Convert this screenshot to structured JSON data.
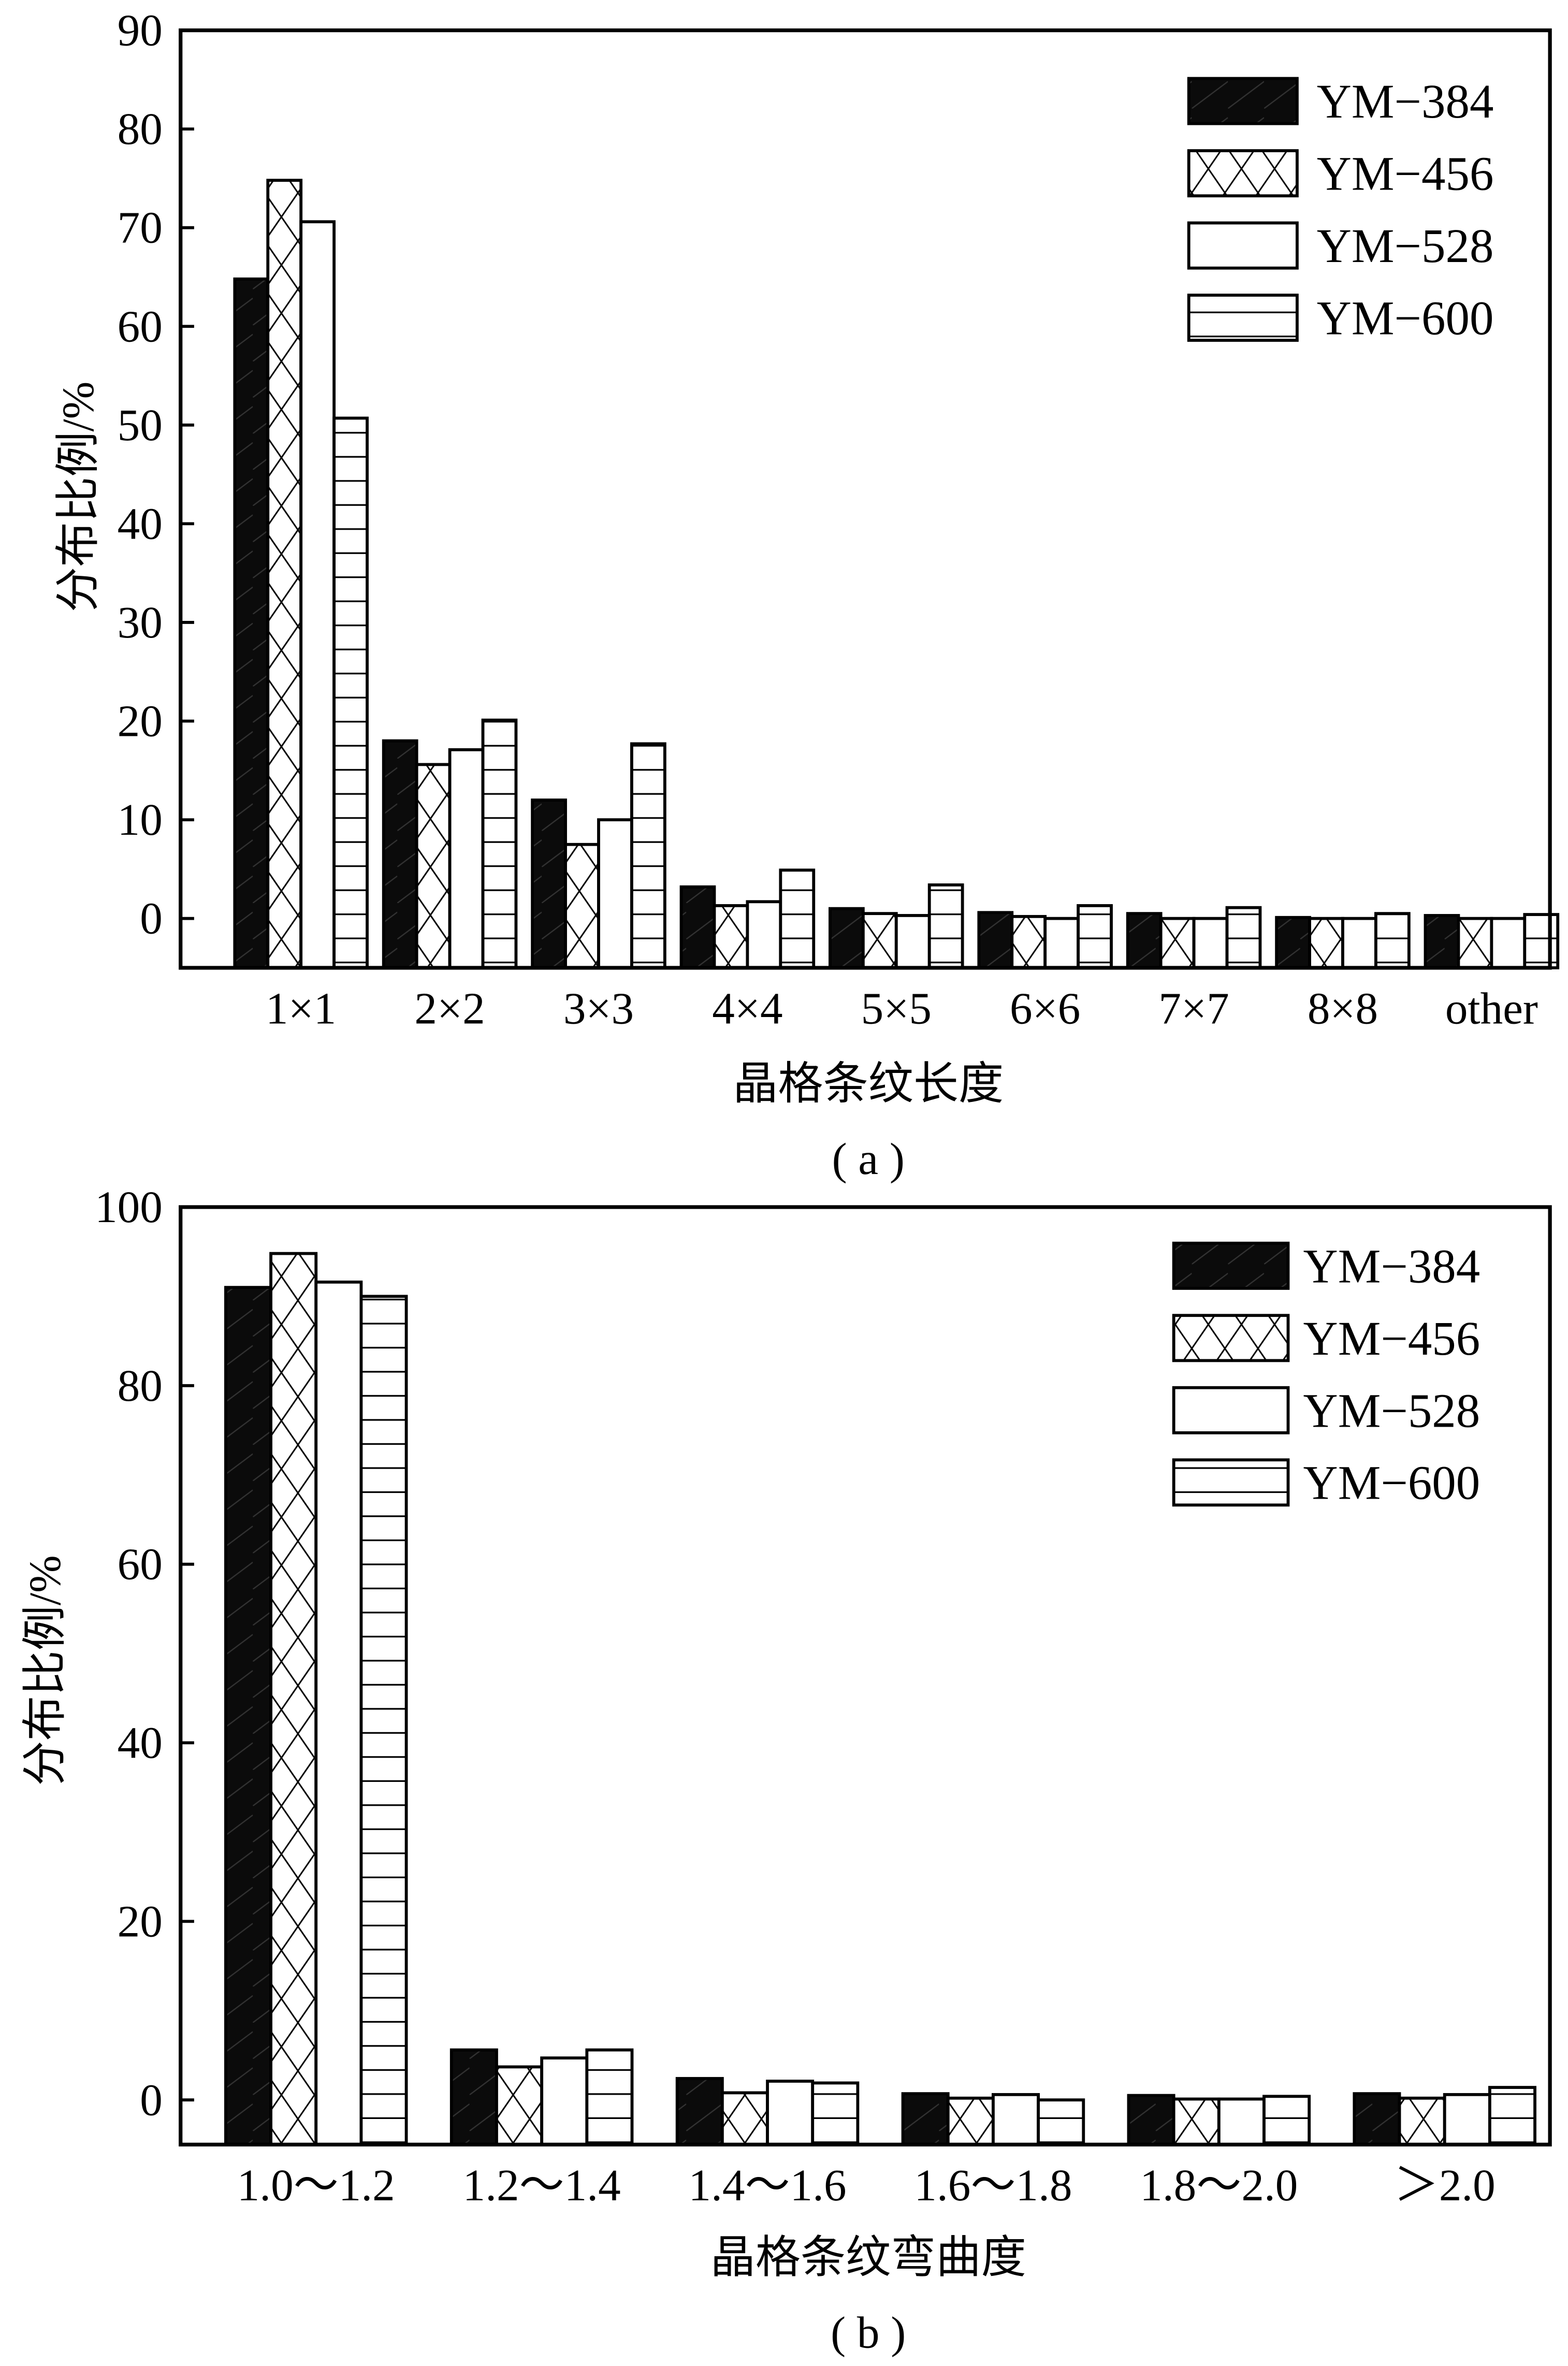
{
  "chart_data": [
    {
      "type": "bar",
      "panel_label": "( a )",
      "xlabel": "晶格条纹长度",
      "ylabel": "分布比例/%",
      "ylim": [
        -5,
        90
      ],
      "yticks": [
        0,
        10,
        20,
        30,
        40,
        50,
        60,
        70,
        80,
        90
      ],
      "categories": [
        "1×1",
        "2×2",
        "3×3",
        "4×4",
        "5×5",
        "6×6",
        "7×7",
        "8×8",
        "other"
      ],
      "legend_position": "top-right",
      "series": [
        {
          "name": "YM−384",
          "pattern": "black",
          "values": [
            64.8,
            18.0,
            12.0,
            3.2,
            1.0,
            0.6,
            0.5,
            0.1,
            0.3
          ]
        },
        {
          "name": "YM−456",
          "pattern": "cross",
          "values": [
            74.8,
            15.6,
            7.5,
            1.3,
            0.5,
            0.2,
            0.0,
            0.0,
            0.0
          ]
        },
        {
          "name": "YM−528",
          "pattern": "white",
          "values": [
            70.6,
            17.1,
            10.0,
            1.7,
            0.3,
            0.0,
            0.0,
            0.0,
            0.0
          ]
        },
        {
          "name": "YM−600",
          "pattern": "hlines",
          "values": [
            50.7,
            20.1,
            17.7,
            4.9,
            3.4,
            1.3,
            1.1,
            0.5,
            0.4
          ]
        }
      ]
    },
    {
      "type": "bar",
      "panel_label": "( b )",
      "xlabel": "晶格条纹弯曲度",
      "ylabel": "分布比例/%",
      "ylim": [
        -5,
        100
      ],
      "yticks": [
        0,
        20,
        40,
        60,
        80,
        100
      ],
      "categories": [
        "1.0～1.2",
        "1.2～1.4",
        "1.4～1.6",
        "1.6～1.8",
        "1.8～2.0",
        "＞2.0"
      ],
      "legend_position": "top-right",
      "series": [
        {
          "name": "YM−384",
          "pattern": "black",
          "values": [
            91.0,
            5.6,
            2.4,
            0.7,
            0.5,
            0.7
          ]
        },
        {
          "name": "YM−456",
          "pattern": "cross",
          "values": [
            94.8,
            3.7,
            0.8,
            0.2,
            0.1,
            0.2
          ]
        },
        {
          "name": "YM−528",
          "pattern": "white",
          "values": [
            91.6,
            4.7,
            2.1,
            0.6,
            0.1,
            0.6
          ]
        },
        {
          "name": "YM−600",
          "pattern": "hlines",
          "values": [
            90.0,
            5.6,
            1.9,
            0.0,
            0.4,
            1.4
          ]
        }
      ]
    }
  ]
}
